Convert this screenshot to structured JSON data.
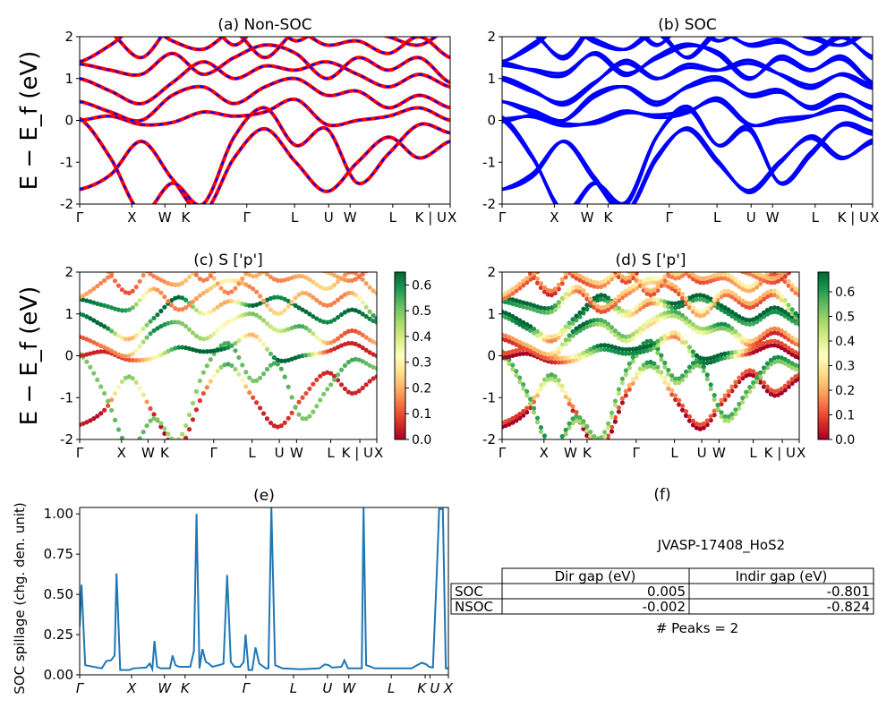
{
  "chart_data": [
    {
      "type": "line",
      "title": "(a) Non-SOC",
      "ylabel": "E − E_f (eV)",
      "ylim": [
        -2,
        2
      ],
      "yticks": [
        "-2",
        "-1",
        "0",
        "1",
        "2"
      ],
      "xticks": [
        {
          "label": "Γ",
          "k": 0
        },
        {
          "label": "X",
          "k": 0.141
        },
        {
          "label": "W",
          "k": 0.23
        },
        {
          "label": "K",
          "k": 0.286
        },
        {
          "label": "Γ",
          "k": 0.451
        },
        {
          "label": "L",
          "k": 0.58
        },
        {
          "label": "U",
          "k": 0.672
        },
        {
          "label": "W",
          "k": 0.73
        },
        {
          "label": "L",
          "k": 0.845
        },
        {
          "label": "K | U",
          "k": 0.943
        },
        {
          "label": "X",
          "k": 1
        }
      ],
      "colors": {
        "line": "#ff0000",
        "dash": "#0000ff"
      },
      "bands_k": [
        0,
        0.0833,
        0.1667,
        0.25,
        0.3333,
        0.4167,
        0.5,
        0.5833,
        0.6667,
        0.75,
        0.8333,
        0.9167,
        1
      ],
      "bands": [
        [
          -1.65,
          -1.3,
          -0.5,
          -1.4,
          -2.2,
          -0.9,
          -0.2,
          -1.0,
          -1.7,
          -1.0,
          -0.4,
          -0.9,
          -0.5
        ],
        [
          0.05,
          -0.9,
          -2.2,
          -1.5,
          -2.0,
          -0.4,
          0.3,
          -0.6,
          -0.2,
          -1.5,
          -0.8,
          -0.1,
          -0.3
        ],
        [
          0.0,
          0.1,
          -0.1,
          -0.05,
          0.2,
          0.1,
          0.2,
          0.5,
          -0.1,
          0.0,
          0.1,
          0.3,
          0.0
        ],
        [
          0.45,
          0.2,
          0.0,
          0.6,
          0.8,
          0.4,
          0.8,
          1.0,
          0.6,
          0.7,
          0.3,
          0.6,
          0.3
        ],
        [
          1.0,
          0.7,
          0.4,
          0.9,
          1.4,
          1.0,
          1.3,
          1.2,
          1.4,
          1.1,
          0.8,
          1.1,
          0.8
        ],
        [
          1.35,
          1.2,
          1.1,
          1.6,
          1.1,
          1.5,
          1.8,
          1.6,
          1.0,
          1.5,
          1.2,
          1.5,
          0.9
        ],
        [
          1.4,
          1.8,
          2.3,
          1.9,
          1.7,
          2.1,
          1.5,
          2.1,
          1.8,
          1.9,
          1.6,
          2.0,
          1.5
        ],
        [
          2.4,
          2.1,
          1.5,
          2.3,
          2.5,
          1.8,
          2.4,
          1.9,
          2.3,
          2.2,
          2.0,
          1.8,
          2.2
        ]
      ]
    },
    {
      "type": "line",
      "title": "(b) SOC",
      "ylim": [
        -2,
        2
      ],
      "yticks": [
        "-2",
        "-1",
        "0",
        "1",
        "2"
      ],
      "colors": {
        "line": "#0000ff"
      }
    },
    {
      "type": "scatter",
      "title": "(c)  S ['p']",
      "ylabel": "E − E_f (eV)",
      "ylim": [
        -2,
        2
      ],
      "colorbar": {
        "min": 0,
        "max": 0.65,
        "ticks": [
          "0.0",
          "0.1",
          "0.2",
          "0.3",
          "0.4",
          "0.5",
          "0.6"
        ],
        "colormap": "RdYlGn"
      },
      "weights": [
        [
          0.05,
          0.05,
          0.5,
          0.05,
          0.05,
          0.1,
          0.55,
          0.1,
          0.05,
          0.1,
          0.05,
          0.05,
          0.05
        ],
        [
          0.5,
          0.5,
          0.55,
          0.5,
          0.45,
          0.5,
          0.55,
          0.5,
          0.55,
          0.5,
          0.5,
          0.55,
          0.5
        ],
        [
          0.05,
          0.05,
          0.1,
          0.3,
          0.6,
          0.65,
          0.6,
          0.2,
          0.65,
          0.6,
          0.1,
          0.05,
          0.05
        ],
        [
          0.1,
          0.15,
          0.2,
          0.6,
          0.5,
          0.45,
          0.3,
          0.5,
          0.4,
          0.55,
          0.2,
          0.1,
          0.2
        ],
        [
          0.6,
          0.65,
          0.2,
          0.6,
          0.65,
          0.35,
          0.2,
          0.65,
          0.6,
          0.65,
          0.6,
          0.65,
          0.6
        ],
        [
          0.65,
          0.6,
          0.55,
          0.2,
          0.15,
          0.2,
          0.3,
          0.15,
          0.25,
          0.2,
          0.15,
          0.2,
          0.6
        ],
        [
          0.2,
          0.15,
          0.2,
          0.15,
          0.2,
          0.25,
          0.15,
          0.2,
          0.15,
          0.2,
          0.25,
          0.15,
          0.2
        ],
        [
          0.1,
          0.15,
          0.1,
          0.2,
          0.1,
          0.15,
          0.1,
          0.2,
          0.15,
          0.1,
          0.2,
          0.15,
          0.1
        ]
      ]
    },
    {
      "type": "scatter",
      "title": "(d) S ['p']",
      "ylim": [
        -2,
        2
      ],
      "colorbar": {
        "min": 0,
        "max": 0.68,
        "ticks": [
          "0.0",
          "0.1",
          "0.2",
          "0.3",
          "0.4",
          "0.5",
          "0.6"
        ],
        "colormap": "RdYlGn"
      }
    },
    {
      "type": "line",
      "title": "(e)",
      "ylabel": "SOC spillage (chg. den. unit)",
      "ylim": [
        0,
        1.04
      ],
      "yticks": [
        "0.00",
        "0.25",
        "0.50",
        "0.75",
        "1.00"
      ],
      "xticks": [
        {
          "label": "Γ",
          "k": 0
        },
        {
          "label": "X",
          "k": 0.141
        },
        {
          "label": "W",
          "k": 0.23
        },
        {
          "label": "K",
          "k": 0.286
        },
        {
          "label": "Γ",
          "k": 0.451
        },
        {
          "label": "L",
          "k": 0.58
        },
        {
          "label": "U",
          "k": 0.672
        },
        {
          "label": "W",
          "k": 0.73
        },
        {
          "label": "L",
          "k": 0.845
        },
        {
          "label": "K",
          "k": 0.937
        },
        {
          "label": "U",
          "k": 0.95
        },
        {
          "label": "X",
          "k": 1
        }
      ],
      "colors": {
        "line": "#1f77b4"
      },
      "points": [
        [
          0,
          0.3
        ],
        [
          0.005,
          0.56
        ],
        [
          0.015,
          0.06
        ],
        [
          0.06,
          0.04
        ],
        [
          0.072,
          0.085
        ],
        [
          0.085,
          0.09
        ],
        [
          0.095,
          0.12
        ],
        [
          0.1,
          0.63
        ],
        [
          0.11,
          0.03
        ],
        [
          0.135,
          0.03
        ],
        [
          0.145,
          0.04
        ],
        [
          0.18,
          0.045
        ],
        [
          0.19,
          0.07
        ],
        [
          0.197,
          0.035
        ],
        [
          0.203,
          0.21
        ],
        [
          0.21,
          0.05
        ],
        [
          0.22,
          0.04
        ],
        [
          0.245,
          0.04
        ],
        [
          0.252,
          0.12
        ],
        [
          0.26,
          0.06
        ],
        [
          0.27,
          0.05
        ],
        [
          0.3,
          0.05
        ],
        [
          0.31,
          0.15
        ],
        [
          0.317,
          1.0
        ],
        [
          0.325,
          0.04
        ],
        [
          0.333,
          0.16
        ],
        [
          0.342,
          0.08
        ],
        [
          0.35,
          0.07
        ],
        [
          0.36,
          0.05
        ],
        [
          0.385,
          0.065
        ],
        [
          0.39,
          0.07
        ],
        [
          0.4,
          0.62
        ],
        [
          0.41,
          0.08
        ],
        [
          0.42,
          0.05
        ],
        [
          0.435,
          0.05
        ],
        [
          0.445,
          0.08
        ],
        [
          0.45,
          0.25
        ],
        [
          0.458,
          0.03
        ],
        [
          0.468,
          0.03
        ],
        [
          0.477,
          0.17
        ],
        [
          0.487,
          0.07
        ],
        [
          0.505,
          0.04
        ],
        [
          0.512,
          0.04
        ],
        [
          0.52,
          1.04
        ],
        [
          0.53,
          0.06
        ],
        [
          0.55,
          0.04
        ],
        [
          0.6,
          0.035
        ],
        [
          0.65,
          0.04
        ],
        [
          0.665,
          0.065
        ],
        [
          0.675,
          0.06
        ],
        [
          0.685,
          0.045
        ],
        [
          0.71,
          0.05
        ],
        [
          0.718,
          0.09
        ],
        [
          0.728,
          0.04
        ],
        [
          0.765,
          0.04
        ],
        [
          0.77,
          1.04
        ],
        [
          0.777,
          0.06
        ],
        [
          0.79,
          0.05
        ],
        [
          0.8,
          0.04
        ],
        [
          0.9,
          0.04
        ],
        [
          0.915,
          0.06
        ],
        [
          0.928,
          0.075
        ],
        [
          0.94,
          0.065
        ],
        [
          0.947,
          0.05
        ],
        [
          0.958,
          0.045
        ],
        [
          0.968,
          0.6
        ],
        [
          0.975,
          1.03
        ],
        [
          0.985,
          1.03
        ],
        [
          0.993,
          0.04
        ],
        [
          1,
          0.04
        ]
      ]
    },
    {
      "type": "table",
      "title": "(f)",
      "material": "JVASP-17408_HoS2",
      "columns": [
        "Dir gap (eV)",
        "Indir gap (eV)"
      ],
      "rows": [
        {
          "label": "SOC",
          "values": [
            "0.005",
            "-0.801"
          ]
        },
        {
          "label": "NSOC",
          "values": [
            "-0.002",
            "-0.824"
          ]
        }
      ],
      "footer": "# Peaks = 2"
    }
  ]
}
